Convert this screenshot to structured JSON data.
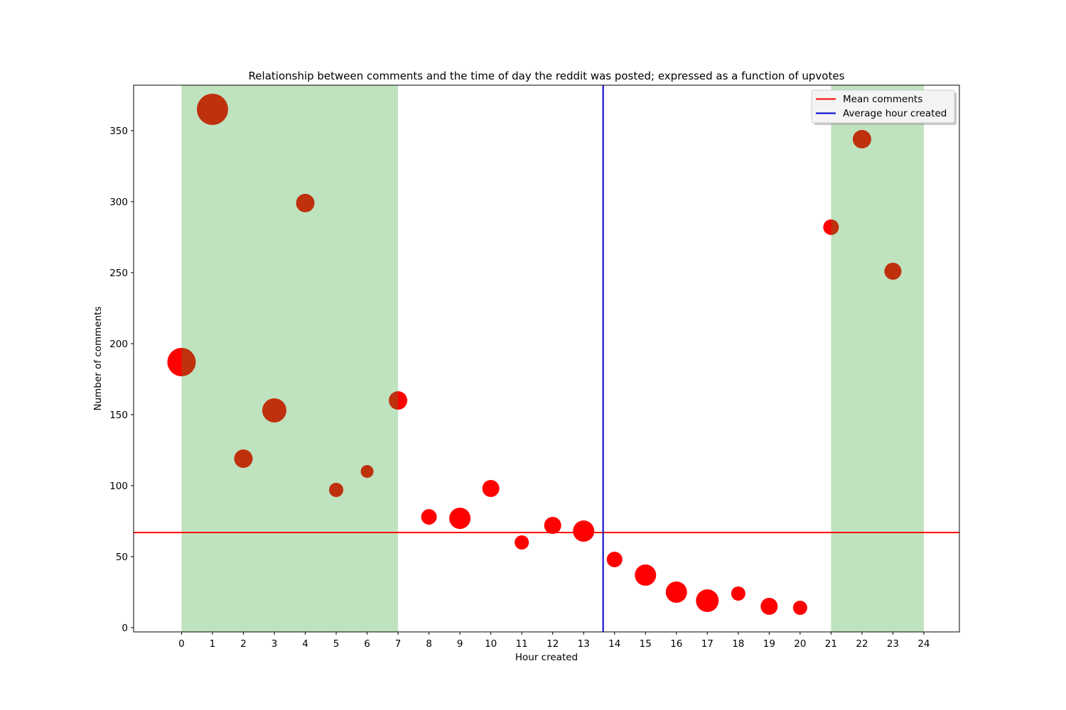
{
  "chart_data": {
    "type": "scatter",
    "title": "Relationship between comments and the time of day the reddit was posted; expressed as a function of upvotes",
    "xlabel": "Hour created",
    "ylabel": "Number of comments",
    "xlim": [
      -1.55,
      25.15
    ],
    "ylim": [
      -3,
      382
    ],
    "xticks": [
      0,
      1,
      2,
      3,
      4,
      5,
      6,
      7,
      8,
      9,
      10,
      11,
      12,
      13,
      14,
      15,
      16,
      17,
      18,
      19,
      20,
      21,
      22,
      23,
      24
    ],
    "yticks": [
      0,
      50,
      100,
      150,
      200,
      250,
      300,
      350
    ],
    "grid": false,
    "legend_position": "top-right",
    "shaded_regions": [
      {
        "x_start": 0,
        "x_end": 7,
        "color": "#c0e3c0"
      },
      {
        "x_start": 21,
        "x_end": 24,
        "color": "#c0e3c0"
      }
    ],
    "reference_lines": {
      "mean_comments": {
        "label": "Mean comments",
        "value": 67,
        "color": "#ff0000",
        "orientation": "horizontal"
      },
      "average_hour": {
        "label": "Average hour created",
        "value": 13.63,
        "color": "#0000cc",
        "orientation": "vertical"
      }
    },
    "point_color": "#ff0000",
    "points": [
      {
        "x": 0,
        "y": 187,
        "size": 20
      },
      {
        "x": 1,
        "y": 365,
        "size": 22
      },
      {
        "x": 2,
        "y": 119,
        "size": 13
      },
      {
        "x": 3,
        "y": 153,
        "size": 17
      },
      {
        "x": 4,
        "y": 299,
        "size": 13
      },
      {
        "x": 5,
        "y": 97,
        "size": 10
      },
      {
        "x": 6,
        "y": 110,
        "size": 9
      },
      {
        "x": 7,
        "y": 160,
        "size": 13
      },
      {
        "x": 8,
        "y": 78,
        "size": 11
      },
      {
        "x": 9,
        "y": 77,
        "size": 15
      },
      {
        "x": 10,
        "y": 98,
        "size": 12
      },
      {
        "x": 11,
        "y": 60,
        "size": 10
      },
      {
        "x": 12,
        "y": 72,
        "size": 12
      },
      {
        "x": 13,
        "y": 68,
        "size": 15
      },
      {
        "x": 14,
        "y": 48,
        "size": 11
      },
      {
        "x": 15,
        "y": 37,
        "size": 15
      },
      {
        "x": 16,
        "y": 25,
        "size": 15
      },
      {
        "x": 17,
        "y": 19,
        "size": 16
      },
      {
        "x": 18,
        "y": 24,
        "size": 10
      },
      {
        "x": 19,
        "y": 15,
        "size": 12
      },
      {
        "x": 20,
        "y": 14,
        "size": 10
      },
      {
        "x": 21,
        "y": 282,
        "size": 11
      },
      {
        "x": 22,
        "y": 344,
        "size": 13
      },
      {
        "x": 23,
        "y": 251,
        "size": 12
      }
    ]
  }
}
